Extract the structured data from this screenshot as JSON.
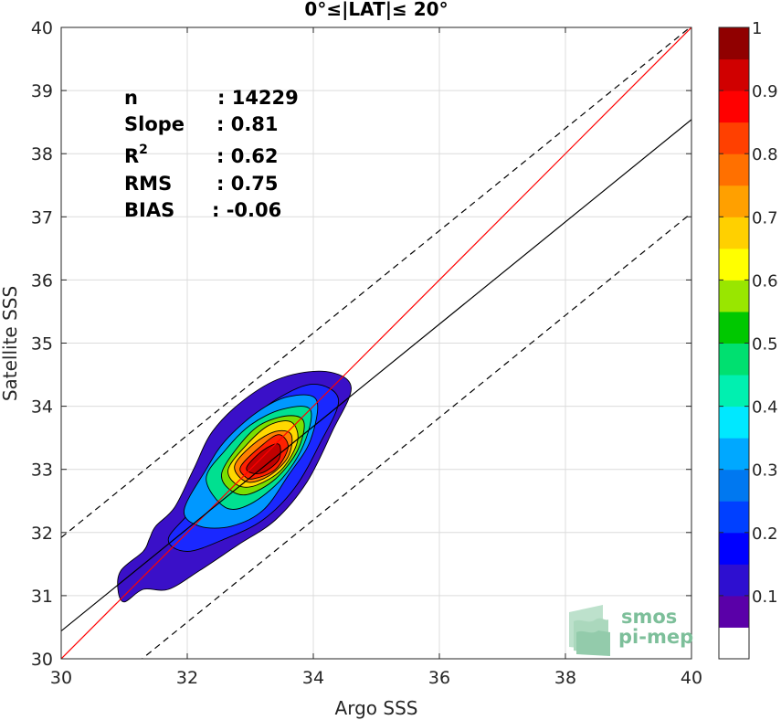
{
  "chart_data": {
    "type": "contour-density",
    "title": "0°≤|LAT|≤ 20°",
    "xlabel": "Argo SSS",
    "ylabel": "Satellite SSS",
    "xlim": [
      30,
      40
    ],
    "ylim": [
      30,
      40
    ],
    "xticks": [
      "30",
      "32",
      "34",
      "36",
      "38",
      "40"
    ],
    "yticks": [
      "30",
      "31",
      "32",
      "33",
      "34",
      "35",
      "36",
      "37",
      "38",
      "39",
      "40"
    ],
    "grid": true,
    "stats": [
      {
        "label": "n",
        "value": ": 14229"
      },
      {
        "label": "Slope",
        "value": ": 0.81"
      },
      {
        "label": "R",
        "sup": "2",
        "value": ": 0.62"
      },
      {
        "label": "RMS",
        "value": ": 0.75"
      },
      {
        "label": "BIAS",
        "value": ": -0.06"
      }
    ],
    "lines": {
      "identity": {
        "slope": 1,
        "intercept": 0,
        "color": "#ff0000",
        "style": "solid"
      },
      "fit": {
        "slope": 0.81,
        "intercept": 6.14,
        "color": "#000000",
        "style": "solid"
      },
      "upper_bound": {
        "slope": 0.81,
        "intercept": 7.62,
        "color": "#000000",
        "style": "dashed"
      },
      "lower_bound": {
        "slope": 0.81,
        "intercept": 4.66,
        "color": "#000000",
        "style": "dashed"
      }
    },
    "colorbar": {
      "ticks": [
        "0.1",
        "0.2",
        "0.3",
        "0.4",
        "0.5",
        "0.6",
        "0.7",
        "0.8",
        "0.9",
        "1"
      ],
      "range": [
        0,
        1
      ],
      "levels": [
        {
          "from": 0.0,
          "to": 0.05,
          "color": "#ffffff"
        },
        {
          "from": 0.05,
          "to": 0.1,
          "color": "#5a00a8"
        },
        {
          "from": 0.1,
          "to": 0.15,
          "color": "#2e0fd0"
        },
        {
          "from": 0.15,
          "to": 0.2,
          "color": "#0000ff"
        },
        {
          "from": 0.2,
          "to": 0.25,
          "color": "#0040ff"
        },
        {
          "from": 0.25,
          "to": 0.3,
          "color": "#0078f0"
        },
        {
          "from": 0.3,
          "to": 0.35,
          "color": "#00a8ff"
        },
        {
          "from": 0.35,
          "to": 0.4,
          "color": "#00e8ff"
        },
        {
          "from": 0.4,
          "to": 0.45,
          "color": "#00f0b0"
        },
        {
          "from": 0.45,
          "to": 0.5,
          "color": "#00e070"
        },
        {
          "from": 0.5,
          "to": 0.55,
          "color": "#00c800"
        },
        {
          "from": 0.55,
          "to": 0.6,
          "color": "#99e600"
        },
        {
          "from": 0.6,
          "to": 0.65,
          "color": "#ffff00"
        },
        {
          "from": 0.65,
          "to": 0.7,
          "color": "#ffd000"
        },
        {
          "from": 0.7,
          "to": 0.75,
          "color": "#ffa000"
        },
        {
          "from": 0.75,
          "to": 0.8,
          "color": "#ff7000"
        },
        {
          "from": 0.8,
          "to": 0.85,
          "color": "#ff4000"
        },
        {
          "from": 0.85,
          "to": 0.9,
          "color": "#ff0000"
        },
        {
          "from": 0.9,
          "to": 0.95,
          "color": "#d00000"
        },
        {
          "from": 0.95,
          "to": 1.0,
          "color": "#900000"
        }
      ]
    },
    "density_contours": [
      {
        "level": 0.05,
        "color": "#3a10c8",
        "points": [
          [
            30.9,
            31.1
          ],
          [
            30.95,
            31.4
          ],
          [
            31.3,
            31.7
          ],
          [
            31.4,
            31.9
          ],
          [
            31.5,
            32.1
          ],
          [
            31.8,
            32.4
          ],
          [
            32.1,
            33.0
          ],
          [
            32.4,
            33.6
          ],
          [
            32.9,
            34.1
          ],
          [
            33.5,
            34.45
          ],
          [
            34.2,
            34.55
          ],
          [
            34.6,
            34.3
          ],
          [
            34.3,
            33.6
          ],
          [
            33.9,
            32.8
          ],
          [
            33.4,
            32.2
          ],
          [
            32.8,
            31.8
          ],
          [
            32.2,
            31.4
          ],
          [
            31.7,
            31.1
          ],
          [
            31.3,
            31.1
          ],
          [
            31.0,
            30.9
          ]
        ]
      },
      {
        "level": 0.2,
        "color": "#1a28ff",
        "points": [
          [
            31.7,
            31.9
          ],
          [
            32.1,
            32.4
          ],
          [
            32.4,
            33.0
          ],
          [
            32.8,
            33.6
          ],
          [
            33.4,
            34.1
          ],
          [
            34.0,
            34.35
          ],
          [
            34.4,
            34.1
          ],
          [
            34.1,
            33.4
          ],
          [
            33.7,
            32.7
          ],
          [
            33.2,
            32.2
          ],
          [
            32.6,
            31.9
          ],
          [
            32.0,
            31.7
          ]
        ]
      },
      {
        "level": 0.3,
        "color": "#0098ff",
        "points": [
          [
            31.95,
            32.35
          ],
          [
            32.3,
            33.0
          ],
          [
            32.6,
            33.45
          ],
          [
            33.1,
            33.9
          ],
          [
            33.6,
            34.15
          ],
          [
            34.05,
            34.1
          ],
          [
            33.95,
            33.45
          ],
          [
            33.6,
            32.9
          ],
          [
            33.2,
            32.35
          ],
          [
            32.7,
            32.1
          ],
          [
            32.2,
            32.1
          ]
        ]
      },
      {
        "level": 0.45,
        "color": "#00e090",
        "points": [
          [
            32.3,
            32.85
          ],
          [
            32.6,
            33.3
          ],
          [
            33.0,
            33.7
          ],
          [
            33.5,
            33.95
          ],
          [
            33.95,
            33.95
          ],
          [
            33.85,
            33.4
          ],
          [
            33.5,
            32.85
          ],
          [
            33.0,
            32.45
          ],
          [
            32.6,
            32.4
          ]
        ]
      },
      {
        "level": 0.55,
        "color": "#7adf00",
        "points": [
          [
            32.55,
            32.95
          ],
          [
            32.8,
            33.35
          ],
          [
            33.15,
            33.7
          ],
          [
            33.6,
            33.85
          ],
          [
            33.85,
            33.75
          ],
          [
            33.75,
            33.3
          ],
          [
            33.4,
            32.85
          ],
          [
            32.95,
            32.6
          ],
          [
            32.65,
            32.7
          ]
        ]
      },
      {
        "level": 0.65,
        "color": "#ffd800",
        "points": [
          [
            32.65,
            33.0
          ],
          [
            32.95,
            33.4
          ],
          [
            33.3,
            33.7
          ],
          [
            33.65,
            33.75
          ],
          [
            33.75,
            33.45
          ],
          [
            33.5,
            33.0
          ],
          [
            33.1,
            32.75
          ],
          [
            32.8,
            32.75
          ]
        ]
      },
      {
        "level": 0.75,
        "color": "#ff8000",
        "points": [
          [
            32.75,
            33.05
          ],
          [
            33.05,
            33.4
          ],
          [
            33.4,
            33.6
          ],
          [
            33.65,
            33.55
          ],
          [
            33.6,
            33.2
          ],
          [
            33.3,
            32.9
          ],
          [
            32.95,
            32.8
          ]
        ]
      },
      {
        "level": 0.85,
        "color": "#ff2000",
        "points": [
          [
            32.85,
            33.05
          ],
          [
            33.15,
            33.35
          ],
          [
            33.45,
            33.55
          ],
          [
            33.6,
            33.35
          ],
          [
            33.4,
            33.0
          ],
          [
            33.05,
            32.85
          ],
          [
            32.9,
            32.9
          ]
        ]
      },
      {
        "level": 0.95,
        "color": "#c00000",
        "points": [
          [
            32.95,
            33.05
          ],
          [
            33.2,
            33.3
          ],
          [
            33.45,
            33.4
          ],
          [
            33.45,
            33.15
          ],
          [
            33.2,
            32.95
          ],
          [
            33.0,
            32.95
          ]
        ]
      }
    ]
  },
  "logo": {
    "line1": "smos",
    "line2": "pi-mep"
  }
}
